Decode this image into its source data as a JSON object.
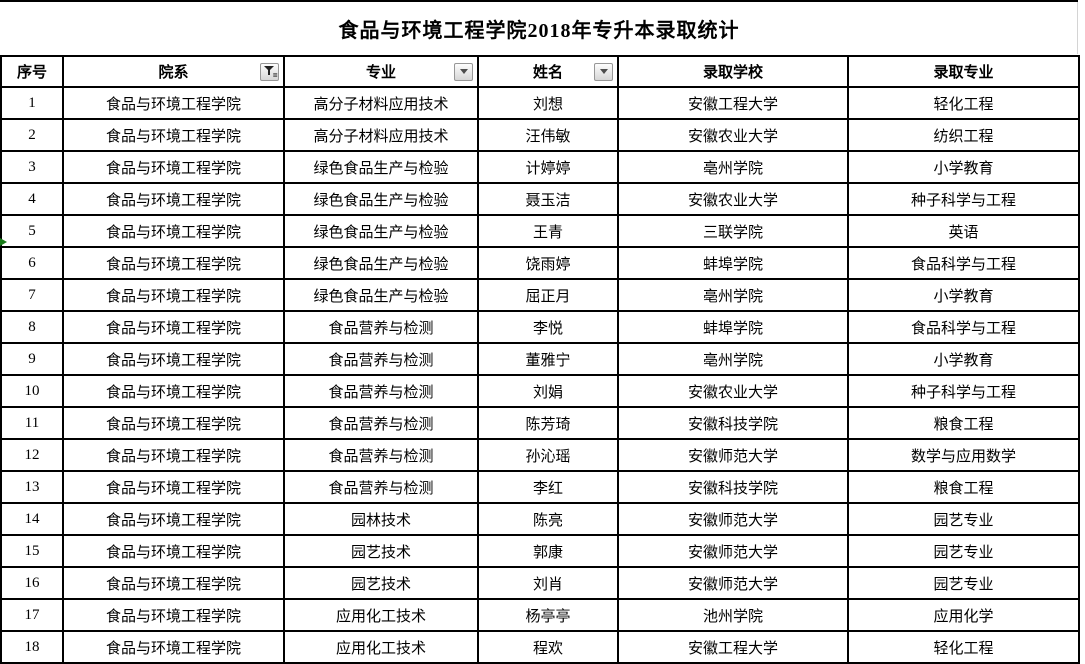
{
  "title": "食品与环境工程学院2018年专升本录取统计",
  "table": {
    "columns": [
      {
        "key": "index",
        "label": "序号",
        "filter": "none"
      },
      {
        "key": "department",
        "label": "院系",
        "filter": "funnel"
      },
      {
        "key": "major",
        "label": "专业",
        "filter": "dropdown"
      },
      {
        "key": "name",
        "label": "姓名",
        "filter": "dropdown"
      },
      {
        "key": "admit_school",
        "label": "录取学校",
        "filter": "none"
      },
      {
        "key": "admit_major",
        "label": "录取专业",
        "filter": "none"
      }
    ],
    "rows": [
      [
        "1",
        "食品与环境工程学院",
        "高分子材料应用技术",
        "刘想",
        "安徽工程大学",
        "轻化工程"
      ],
      [
        "2",
        "食品与环境工程学院",
        "高分子材料应用技术",
        "汪伟敏",
        "安徽农业大学",
        "纺织工程"
      ],
      [
        "3",
        "食品与环境工程学院",
        "绿色食品生产与检验",
        "计婷婷",
        "亳州学院",
        "小学教育"
      ],
      [
        "4",
        "食品与环境工程学院",
        "绿色食品生产与检验",
        "聂玉洁",
        "安徽农业大学",
        "种子科学与工程"
      ],
      [
        "5",
        "食品与环境工程学院",
        "绿色食品生产与检验",
        "王青",
        "三联学院",
        "英语"
      ],
      [
        "6",
        "食品与环境工程学院",
        "绿色食品生产与检验",
        "饶雨婷",
        "蚌埠学院",
        "食品科学与工程"
      ],
      [
        "7",
        "食品与环境工程学院",
        "绿色食品生产与检验",
        "屈正月",
        "亳州学院",
        "小学教育"
      ],
      [
        "8",
        "食品与环境工程学院",
        "食品营养与检测",
        "李悦",
        "蚌埠学院",
        "食品科学与工程"
      ],
      [
        "9",
        "食品与环境工程学院",
        "食品营养与检测",
        "董雅宁",
        "亳州学院",
        "小学教育"
      ],
      [
        "10",
        "食品与环境工程学院",
        "食品营养与检测",
        "刘娟",
        "安徽农业大学",
        "种子科学与工程"
      ],
      [
        "11",
        "食品与环境工程学院",
        "食品营养与检测",
        "陈芳琦",
        "安徽科技学院",
        "粮食工程"
      ],
      [
        "12",
        "食品与环境工程学院",
        "食品营养与检测",
        "孙沁瑶",
        "安徽师范大学",
        "数学与应用数学"
      ],
      [
        "13",
        "食品与环境工程学院",
        "食品营养与检测",
        "李红",
        "安徽科技学院",
        "粮食工程"
      ],
      [
        "14",
        "食品与环境工程学院",
        "园林技术",
        "陈亮",
        "安徽师范大学",
        "园艺专业"
      ],
      [
        "15",
        "食品与环境工程学院",
        "园艺技术",
        "郭康",
        "安徽师范大学",
        "园艺专业"
      ],
      [
        "16",
        "食品与环境工程学院",
        "园艺技术",
        "刘肖",
        "安徽师范大学",
        "园艺专业"
      ],
      [
        "17",
        "食品与环境工程学院",
        "应用化工技术",
        "杨亭亭",
        "池州学院",
        "应用化学"
      ],
      [
        "18",
        "食品与环境工程学院",
        "应用化工技术",
        "程欢",
        "安徽工程大学",
        "轻化工程"
      ]
    ]
  },
  "icons": {
    "funnel": "funnel-filter-icon",
    "dropdown": "chevron-down-icon"
  },
  "colors": {
    "border": "#000000",
    "filter_button_bg": "#e6e6e6",
    "filter_button_border": "#979797",
    "green_marker": "#177a17"
  }
}
